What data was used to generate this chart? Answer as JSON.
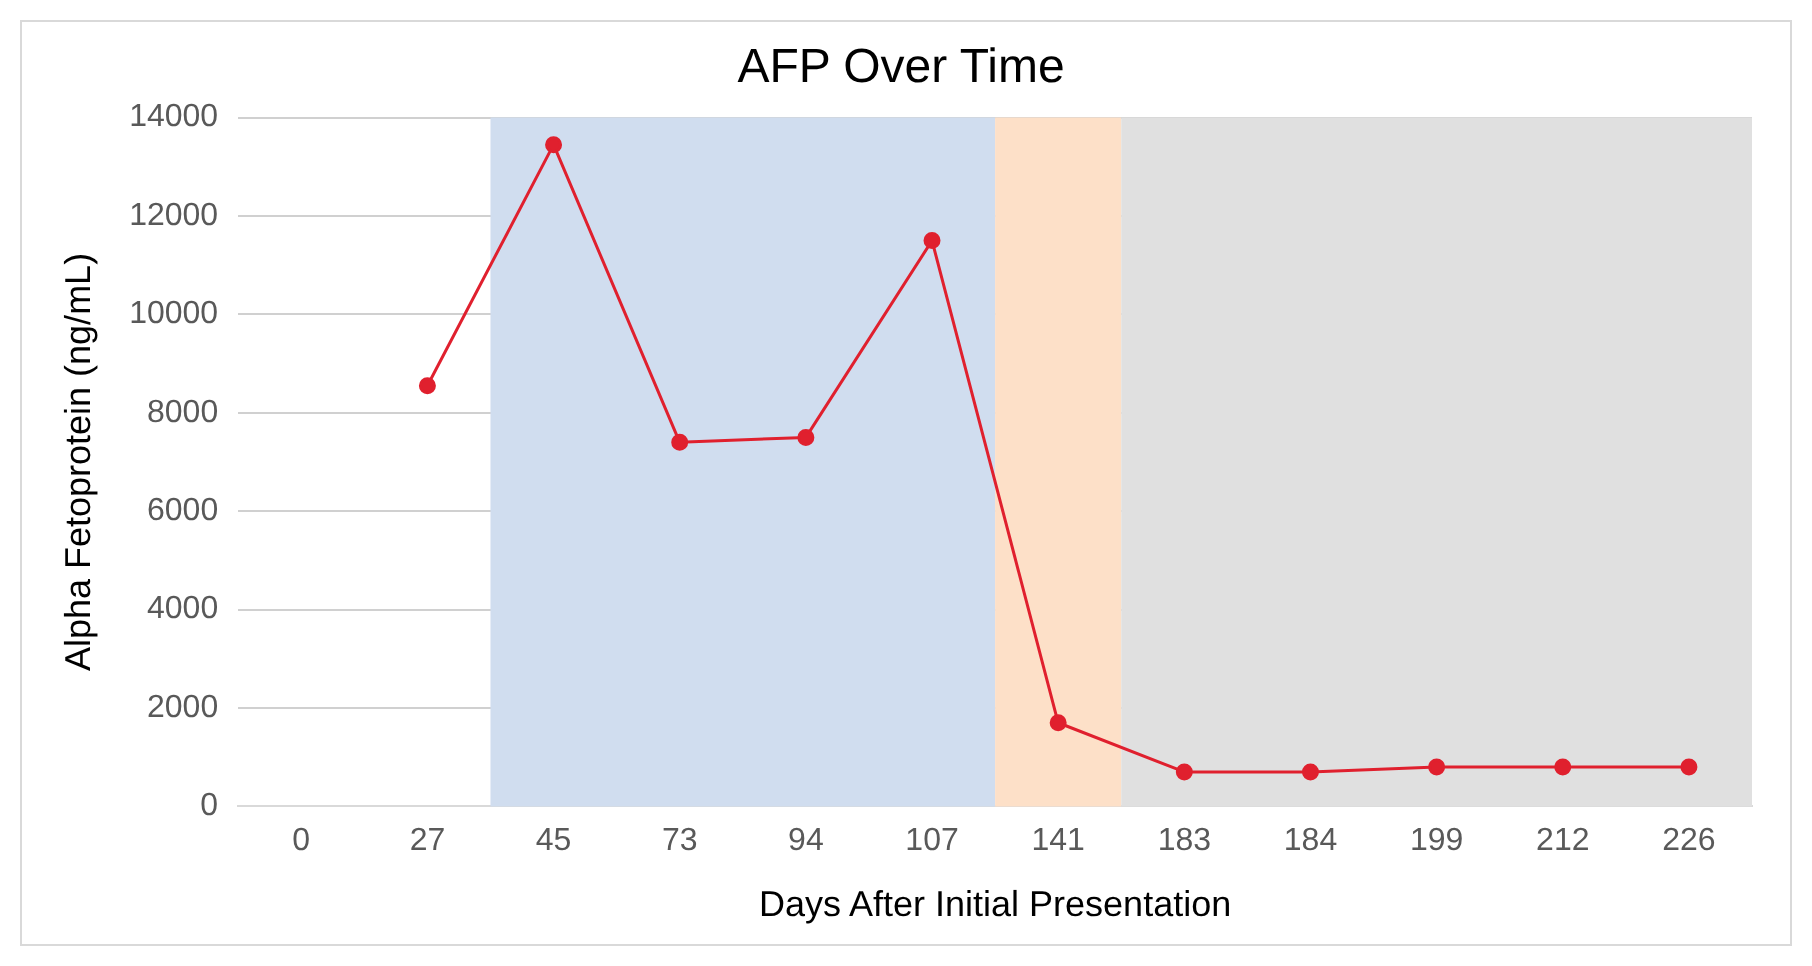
{
  "chart_data": {
    "type": "line",
    "title": "AFP Over Time",
    "xlabel": "Days After Initial Presentation",
    "ylabel": "Alpha Fetoprotein (ng/mL)",
    "categories": [
      "0",
      "27",
      "45",
      "73",
      "94",
      "107",
      "141",
      "183",
      "184",
      "199",
      "212",
      "226"
    ],
    "series": [
      {
        "color": "#e0202e",
        "values": [
          null,
          8550,
          13450,
          7400,
          7500,
          11500,
          1700,
          700,
          700,
          800,
          800,
          800
        ]
      }
    ],
    "ylim": [
      0,
      14000
    ],
    "yticks": [
      0,
      2000,
      4000,
      6000,
      8000,
      10000,
      12000,
      14000
    ],
    "grid": "y",
    "legend": false,
    "marker": "circle",
    "line_style": "solid",
    "bands": [
      {
        "axis": "x",
        "from": "45",
        "to": "107",
        "color": "#d0ddef"
      },
      {
        "axis": "x",
        "from": "141",
        "to": "141",
        "color": "#fde0c8"
      },
      {
        "axis": "x",
        "from": "183",
        "to": "226",
        "color": "#e0e0e0"
      }
    ]
  }
}
